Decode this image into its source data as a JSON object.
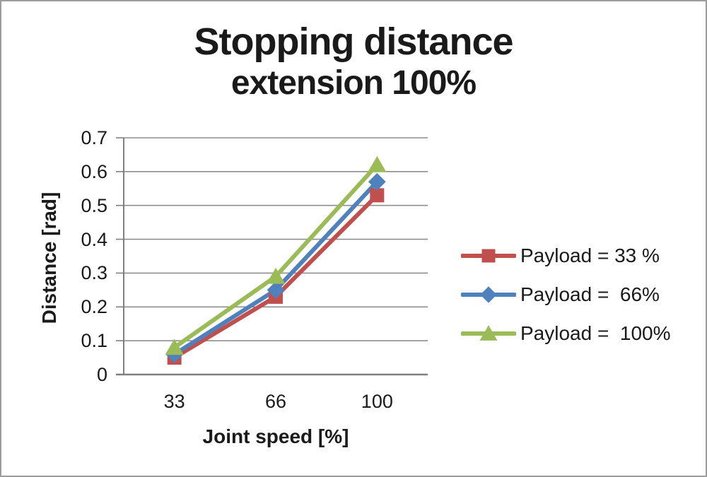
{
  "page": {
    "title_line1": "Stopping distance",
    "title_line2": "extension 100%"
  },
  "chart_data": {
    "type": "line",
    "title": "Stopping distance extension 100%",
    "categories": [
      "33",
      "66",
      "100"
    ],
    "series": [
      {
        "name": "Payload = 33 %",
        "color": "#C0504D",
        "marker": "square",
        "values": [
          0.05,
          0.23,
          0.53
        ]
      },
      {
        "name": "Payload =  66%",
        "color": "#4F81BD",
        "marker": "diamond",
        "values": [
          0.06,
          0.25,
          0.57
        ]
      },
      {
        "name": "Payload =  100%",
        "color": "#9BBB59",
        "marker": "triangle",
        "values": [
          0.08,
          0.29,
          0.62
        ]
      }
    ],
    "xlabel": "Joint speed [%]",
    "ylabel": "Distance [rad]",
    "ylim": [
      0,
      0.7
    ],
    "ytick_step": 0.1,
    "yticks": [
      "0.7",
      "0.6",
      "0.5",
      "0.4",
      "0.3",
      "0.2",
      "0.1",
      "0"
    ],
    "grid": true,
    "legend_position": "right",
    "colors": {
      "grid": "#8e8e8e",
      "axis": "#7f7f7f",
      "text": "#1a1a1a"
    }
  }
}
